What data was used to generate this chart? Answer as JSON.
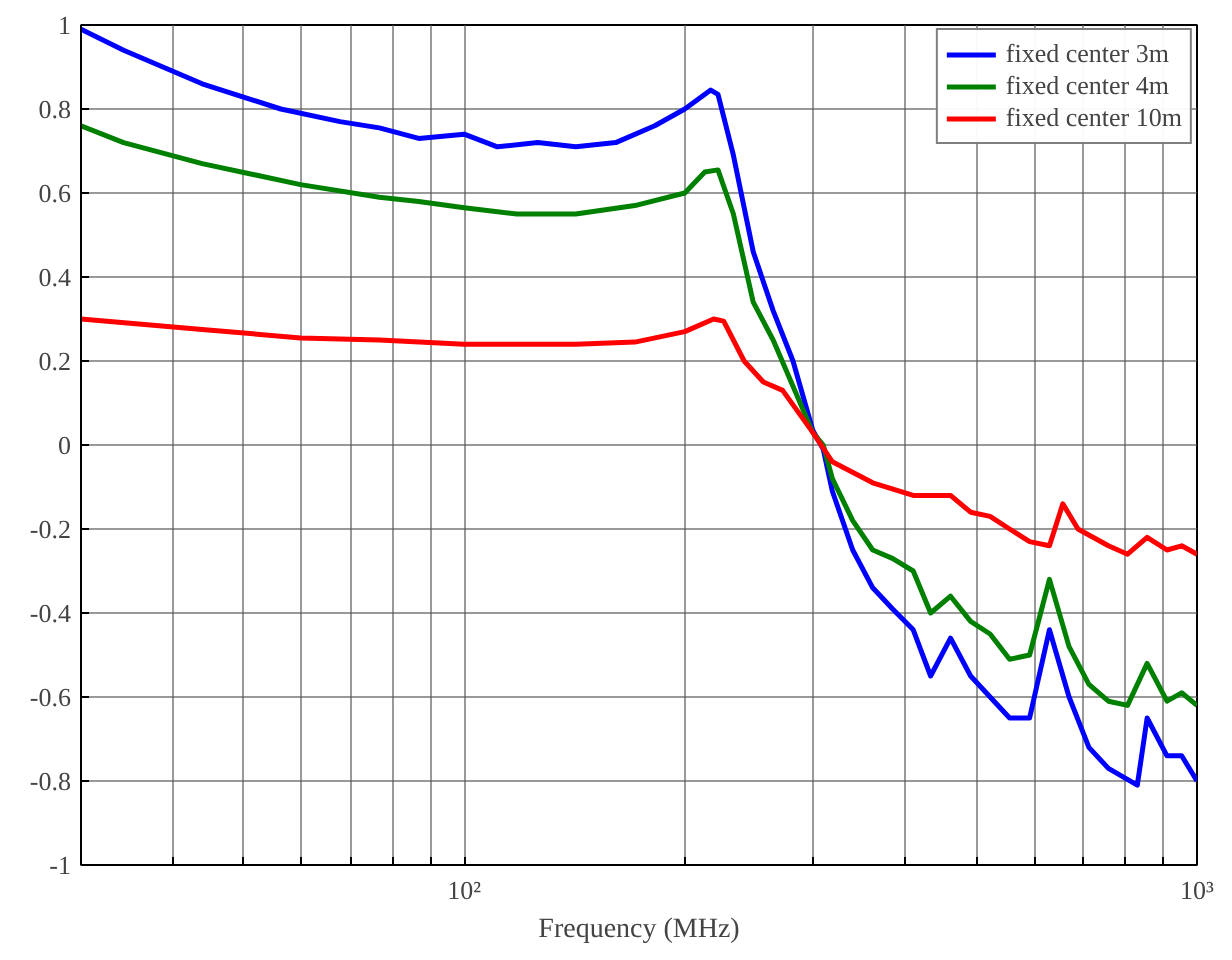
{
  "chart_data": {
    "type": "line",
    "xlabel": "Frequency (MHz)",
    "log": "x",
    "grid": true,
    "legend": "top right",
    "line_style": "solid",
    "xlim": [
      30,
      1000
    ],
    "ylim": [
      -1,
      1
    ],
    "xticks": [
      {
        "value": 30,
        "label": null
      },
      {
        "value": 40,
        "label": null
      },
      {
        "value": 50,
        "label": null
      },
      {
        "value": 60,
        "label": null
      },
      {
        "value": 70,
        "label": null
      },
      {
        "value": 80,
        "label": null
      },
      {
        "value": 90,
        "label": null
      },
      {
        "value": 100,
        "label": "10²"
      },
      {
        "value": 200,
        "label": null
      },
      {
        "value": 300,
        "label": null
      },
      {
        "value": 400,
        "label": null
      },
      {
        "value": 500,
        "label": null
      },
      {
        "value": 600,
        "label": null
      },
      {
        "value": 700,
        "label": null
      },
      {
        "value": 800,
        "label": null
      },
      {
        "value": 900,
        "label": null
      },
      {
        "value": 1000,
        "label": "10³"
      }
    ],
    "yticks": [
      -1,
      -0.8,
      -0.6,
      -0.4,
      -0.2,
      0,
      0.2,
      0.4,
      0.6,
      0.8,
      1
    ],
    "series": [
      {
        "name": "fixed center 3m",
        "color": "#0000ff",
        "x": [
          30,
          34.3,
          43.9,
          56.2,
          67.7,
          76.6,
          86.7,
          100,
          111,
          126,
          142,
          161,
          182,
          200,
          217,
          222,
          233,
          248,
          264,
          281,
          299,
          309,
          318,
          339,
          361,
          384,
          410,
          433,
          461,
          491,
          522,
          555,
          591,
          629,
          669,
          712,
          757,
          829,
          855,
          910,
          953,
          1000
        ],
        "values": [
          0.99,
          0.94,
          0.86,
          0.8,
          0.77,
          0.755,
          0.73,
          0.74,
          0.71,
          0.72,
          0.71,
          0.72,
          0.76,
          0.8,
          0.845,
          0.835,
          0.69,
          0.46,
          0.32,
          0.2,
          0.035,
          -0.01,
          -0.11,
          -0.25,
          -0.34,
          -0.39,
          -0.44,
          -0.55,
          -0.46,
          -0.55,
          -0.6,
          -0.65,
          -0.65,
          -0.44,
          -0.6,
          -0.72,
          -0.77,
          -0.81,
          -0.65,
          -0.74,
          -0.74,
          -0.8
        ]
      },
      {
        "name": "fixed center 4m",
        "color": "#008000",
        "x": [
          30,
          34.3,
          43.9,
          59.8,
          76.6,
          86.7,
          100,
          118,
          142,
          171,
          200,
          213,
          222,
          233,
          248,
          264,
          281,
          299,
          309,
          318,
          339,
          361,
          384,
          410,
          433,
          461,
          491,
          522,
          555,
          591,
          629,
          669,
          712,
          757,
          804,
          855,
          910,
          953,
          1000
        ],
        "values": [
          0.76,
          0.72,
          0.67,
          0.62,
          0.59,
          0.58,
          0.565,
          0.55,
          0.55,
          0.57,
          0.6,
          0.65,
          0.655,
          0.55,
          0.34,
          0.25,
          0.14,
          0.03,
          0.0,
          -0.08,
          -0.18,
          -0.25,
          -0.27,
          -0.3,
          -0.4,
          -0.36,
          -0.42,
          -0.45,
          -0.51,
          -0.5,
          -0.32,
          -0.48,
          -0.57,
          -0.61,
          -0.62,
          -0.52,
          -0.61,
          -0.59,
          -0.62
        ]
      },
      {
        "name": "fixed center 10m",
        "color": "#ff0000",
        "x": [
          30,
          43.9,
          59.8,
          76.6,
          100,
          142,
          171,
          200,
          219,
          226,
          241,
          256,
          272,
          299,
          318,
          361,
          410,
          461,
          491,
          522,
          555,
          591,
          629,
          656,
          688,
          757,
          804,
          855,
          910,
          953,
          1000
        ],
        "values": [
          0.3,
          0.275,
          0.255,
          0.25,
          0.24,
          0.24,
          0.245,
          0.27,
          0.3,
          0.295,
          0.2,
          0.15,
          0.13,
          0.03,
          -0.04,
          -0.09,
          -0.12,
          -0.12,
          -0.16,
          -0.17,
          -0.2,
          -0.23,
          -0.24,
          -0.14,
          -0.2,
          -0.24,
          -0.26,
          -0.22,
          -0.25,
          -0.24,
          -0.26
        ]
      }
    ]
  }
}
